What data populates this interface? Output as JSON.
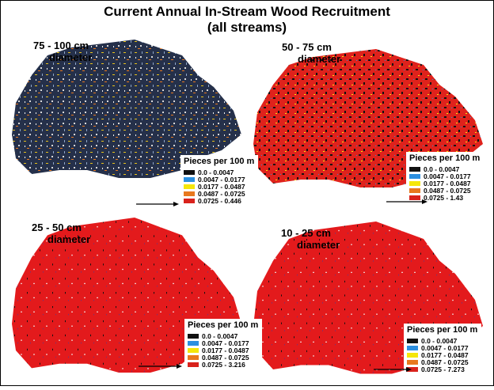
{
  "title": {
    "line1": "Current Annual In-Stream Wood Recruitment",
    "line2": "(all streams)"
  },
  "panels": [
    {
      "label": "75 - 100 cm",
      "sublabel": "diameter",
      "legend_title": "Pieces per 100 m",
      "items": [
        {
          "color": "#111111",
          "label": "0.0 - 0.0047"
        },
        {
          "color": "#2b8fe0",
          "label": "0.0047 - 0.0177"
        },
        {
          "color": "#f5e60a",
          "label": "0.0177 - 0.0487"
        },
        {
          "color": "#e8781e",
          "label": "0.0487 - 0.0725"
        },
        {
          "color": "#d9221c",
          "label": "0.0725 - 0.446"
        }
      ]
    },
    {
      "label": "50 - 75 cm",
      "sublabel": "diameter",
      "legend_title": "Pieces per 100 m",
      "items": [
        {
          "color": "#111111",
          "label": "0.0 - 0.0047"
        },
        {
          "color": "#2b8fe0",
          "label": "0.0047 - 0.0177"
        },
        {
          "color": "#f5e60a",
          "label": "0.0177 - 0.0487"
        },
        {
          "color": "#e8781e",
          "label": "0.0487 - 0.0725"
        },
        {
          "color": "#d9221c",
          "label": "0.0725 - 1.43"
        }
      ]
    },
    {
      "label": "25 - 50 cm",
      "sublabel": "diameter",
      "legend_title": "Pieces per 100 m",
      "items": [
        {
          "color": "#111111",
          "label": "0.0 - 0.0047"
        },
        {
          "color": "#2b8fe0",
          "label": "0.0047 - 0.0177"
        },
        {
          "color": "#f5e60a",
          "label": "0.0177 - 0.0487"
        },
        {
          "color": "#e8781e",
          "label": "0.0487 - 0.0725"
        },
        {
          "color": "#d9221c",
          "label": "0.0725 - 3.216"
        }
      ]
    },
    {
      "label": "10 - 25 cm",
      "sublabel": "diameter",
      "legend_title": "Pieces per 100 m",
      "items": [
        {
          "color": "#111111",
          "label": "0.0 - 0.0047"
        },
        {
          "color": "#2b8fe0",
          "label": "0.0047 - 0.0177"
        },
        {
          "color": "#f5e60a",
          "label": "0.0177 - 0.0487"
        },
        {
          "color": "#e8781e",
          "label": "0.0487 - 0.0725"
        },
        {
          "color": "#d9221c",
          "label": "0.0725 - 7.273"
        }
      ]
    }
  ]
}
